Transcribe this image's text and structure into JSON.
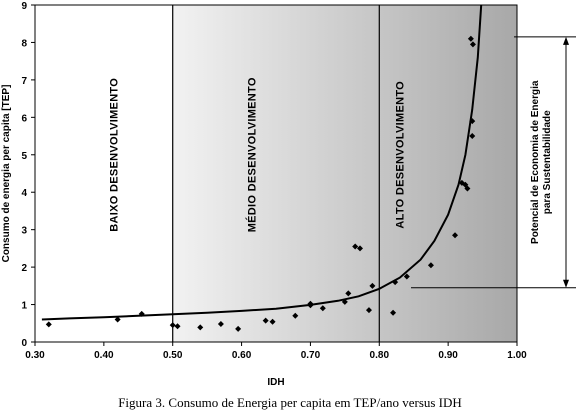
{
  "chart_data": {
    "type": "scatter",
    "xlabel": "IDH",
    "ylabel": "Consumo de energia per capita [TEP]",
    "xlim": [
      0.3,
      1.0
    ],
    "ylim": [
      0,
      9
    ],
    "xticks": [
      "0.30",
      "0.40",
      "0.50",
      "0.60",
      "0.70",
      "0.80",
      "0.90",
      "1.00"
    ],
    "yticks": [
      "0",
      "1",
      "2",
      "3",
      "4",
      "5",
      "6",
      "7",
      "8",
      "9"
    ],
    "grid": false,
    "dividers": [
      0.5,
      0.8
    ],
    "regions": [
      {
        "label": "BAIXO  DESENVOLVIMENTO",
        "x_center": 0.42,
        "y_center": 5.0
      },
      {
        "label": "MÉDIO  DESENVOLVIMENTO",
        "x_center": 0.62,
        "y_center": 5.0
      },
      {
        "label": "ALTO  DESENVOLVIMENTO",
        "x_center": 0.835,
        "y_center": 5.0
      }
    ],
    "shading": {
      "from_x": 0.5,
      "to_x": 1.0,
      "color_start": "#f2f2f2",
      "color_end": "#a8a8a8"
    },
    "points": [
      {
        "x": 0.32,
        "y": 0.47
      },
      {
        "x": 0.42,
        "y": 0.6
      },
      {
        "x": 0.455,
        "y": 0.75
      },
      {
        "x": 0.5,
        "y": 0.45
      },
      {
        "x": 0.507,
        "y": 0.42
      },
      {
        "x": 0.54,
        "y": 0.39
      },
      {
        "x": 0.57,
        "y": 0.48
      },
      {
        "x": 0.595,
        "y": 0.35
      },
      {
        "x": 0.635,
        "y": 0.57
      },
      {
        "x": 0.645,
        "y": 0.54
      },
      {
        "x": 0.678,
        "y": 0.7
      },
      {
        "x": 0.7,
        "y": 1.02
      },
      {
        "x": 0.7,
        "y": 0.98
      },
      {
        "x": 0.718,
        "y": 0.9
      },
      {
        "x": 0.75,
        "y": 1.07
      },
      {
        "x": 0.755,
        "y": 1.3
      },
      {
        "x": 0.765,
        "y": 2.55
      },
      {
        "x": 0.772,
        "y": 2.5
      },
      {
        "x": 0.785,
        "y": 0.85
      },
      {
        "x": 0.79,
        "y": 1.5
      },
      {
        "x": 0.82,
        "y": 0.78
      },
      {
        "x": 0.823,
        "y": 1.6
      },
      {
        "x": 0.84,
        "y": 1.75
      },
      {
        "x": 0.875,
        "y": 2.05
      },
      {
        "x": 0.91,
        "y": 2.85
      },
      {
        "x": 0.92,
        "y": 4.25
      },
      {
        "x": 0.925,
        "y": 4.2
      },
      {
        "x": 0.928,
        "y": 4.1
      },
      {
        "x": 0.933,
        "y": 8.1
      },
      {
        "x": 0.936,
        "y": 7.95
      },
      {
        "x": 0.935,
        "y": 5.9
      },
      {
        "x": 0.935,
        "y": 5.5
      }
    ],
    "trend_curve": {
      "x": [
        0.31,
        0.35,
        0.4,
        0.45,
        0.5,
        0.55,
        0.6,
        0.65,
        0.7,
        0.74,
        0.77,
        0.8,
        0.83,
        0.86,
        0.88,
        0.9,
        0.915,
        0.925,
        0.935,
        0.943,
        0.948
      ],
      "y": [
        0.6,
        0.63,
        0.66,
        0.7,
        0.74,
        0.78,
        0.83,
        0.89,
        0.99,
        1.1,
        1.22,
        1.42,
        1.72,
        2.2,
        2.7,
        3.4,
        4.2,
        5.0,
        6.2,
        7.6,
        9.0
      ]
    },
    "annotation": {
      "text_lines": [
        "Potencial de Economia de Energia",
        "para Sustentabilidade"
      ],
      "y_top": 8.15,
      "y_bottom": 1.45
    }
  },
  "caption": "Figura 3. Consumo de Energia per capita em TEP/ano versus IDH"
}
